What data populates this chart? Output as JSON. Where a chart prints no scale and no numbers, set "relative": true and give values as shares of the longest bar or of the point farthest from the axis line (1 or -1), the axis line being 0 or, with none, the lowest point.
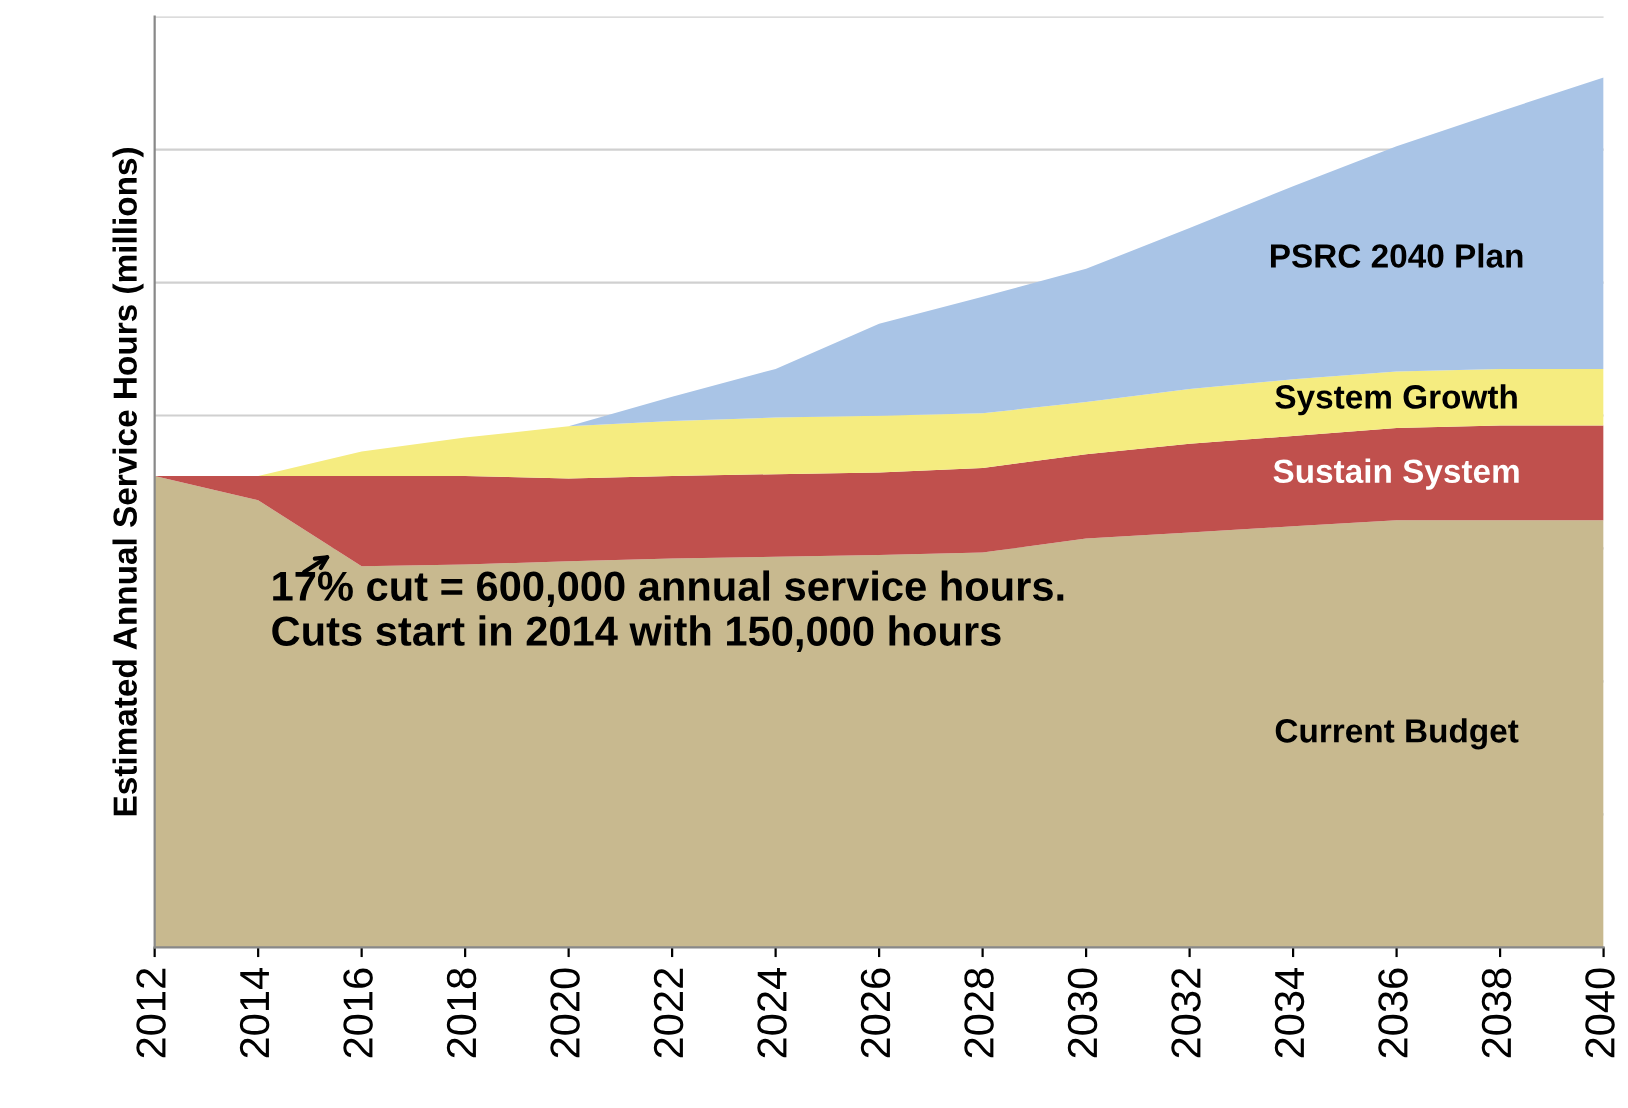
{
  "chart_data": {
    "type": "area",
    "stacked": true,
    "relative": true,
    "ylabel": "Estimated Annual Service Hours (millions)",
    "x": [
      2012,
      2014,
      2016,
      2018,
      2020,
      2022,
      2024,
      2026,
      2028,
      2030,
      2032,
      2034,
      2036,
      2038,
      2040
    ],
    "xlim": [
      2012,
      2040
    ],
    "xticks": [
      2012,
      2014,
      2016,
      2018,
      2020,
      2022,
      2024,
      2026,
      2028,
      2030,
      2032,
      2034,
      2036,
      2038,
      2040
    ],
    "grid": "y",
    "legend": false,
    "series": [
      {
        "name": "Current Budget",
        "color": "#c8b98f",
        "values": [
          0.542,
          0.514,
          0.438,
          0.44,
          0.444,
          0.447,
          0.449,
          0.451,
          0.454,
          0.47,
          0.477,
          0.484,
          0.491,
          0.491,
          0.491
        ]
      },
      {
        "name": "Sustain System",
        "color": "#c0504d",
        "values": [
          0,
          0.028,
          0.104,
          0.102,
          0.095,
          0.095,
          0.095,
          0.095,
          0.097,
          0.097,
          0.102,
          0.104,
          0.106,
          0.109,
          0.109
        ]
      },
      {
        "name": "System Growth",
        "color": "#f5ec80",
        "values": [
          0,
          0,
          0.028,
          0.044,
          0.06,
          0.063,
          0.065,
          0.065,
          0.063,
          0.06,
          0.063,
          0.065,
          0.065,
          0.065,
          0.065
        ]
      },
      {
        "name": "PSRC 2040 Plan",
        "color": "#a9c4e6",
        "values": [
          0,
          0,
          0,
          0,
          0,
          0.028,
          0.056,
          0.106,
          0.134,
          0.153,
          0.185,
          0.222,
          0.259,
          0.296,
          0.335
        ]
      }
    ],
    "annotations": [
      "17% cut = 600,000 annual service hours.\nCuts start in 2014 with 150,000 hours"
    ]
  }
}
